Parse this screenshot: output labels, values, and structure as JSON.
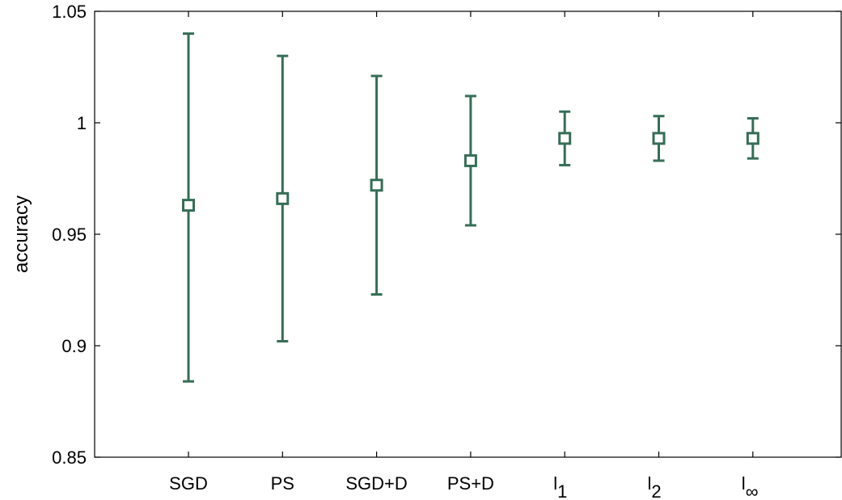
{
  "chart_data": {
    "type": "scatter",
    "title": "",
    "xlabel": "",
    "ylabel": "accuracy",
    "ylim": [
      0.85,
      1.05
    ],
    "yticks": [
      0.85,
      0.9,
      0.95,
      1,
      1.05
    ],
    "ytick_labels": [
      "0.85",
      "0.9",
      "0.95",
      "1",
      "1.05"
    ],
    "categories": [
      {
        "label": "SGD",
        "sub": ""
      },
      {
        "label": "PS",
        "sub": ""
      },
      {
        "label": "SGD+D",
        "sub": ""
      },
      {
        "label": "PS+D",
        "sub": ""
      },
      {
        "label": "l",
        "sub": "1"
      },
      {
        "label": "l",
        "sub": "2"
      },
      {
        "label": "l",
        "sub": "∞"
      }
    ],
    "series": [
      {
        "values": [
          0.963,
          0.966,
          0.972,
          0.983,
          0.993,
          0.993,
          0.993
        ],
        "lower": [
          0.884,
          0.902,
          0.923,
          0.954,
          0.981,
          0.983,
          0.984
        ],
        "upper": [
          1.04,
          1.03,
          1.021,
          1.012,
          1.005,
          1.003,
          1.002
        ],
        "color": "#356e56",
        "marker": "square-open"
      }
    ],
    "grid": false,
    "legend": "none"
  }
}
